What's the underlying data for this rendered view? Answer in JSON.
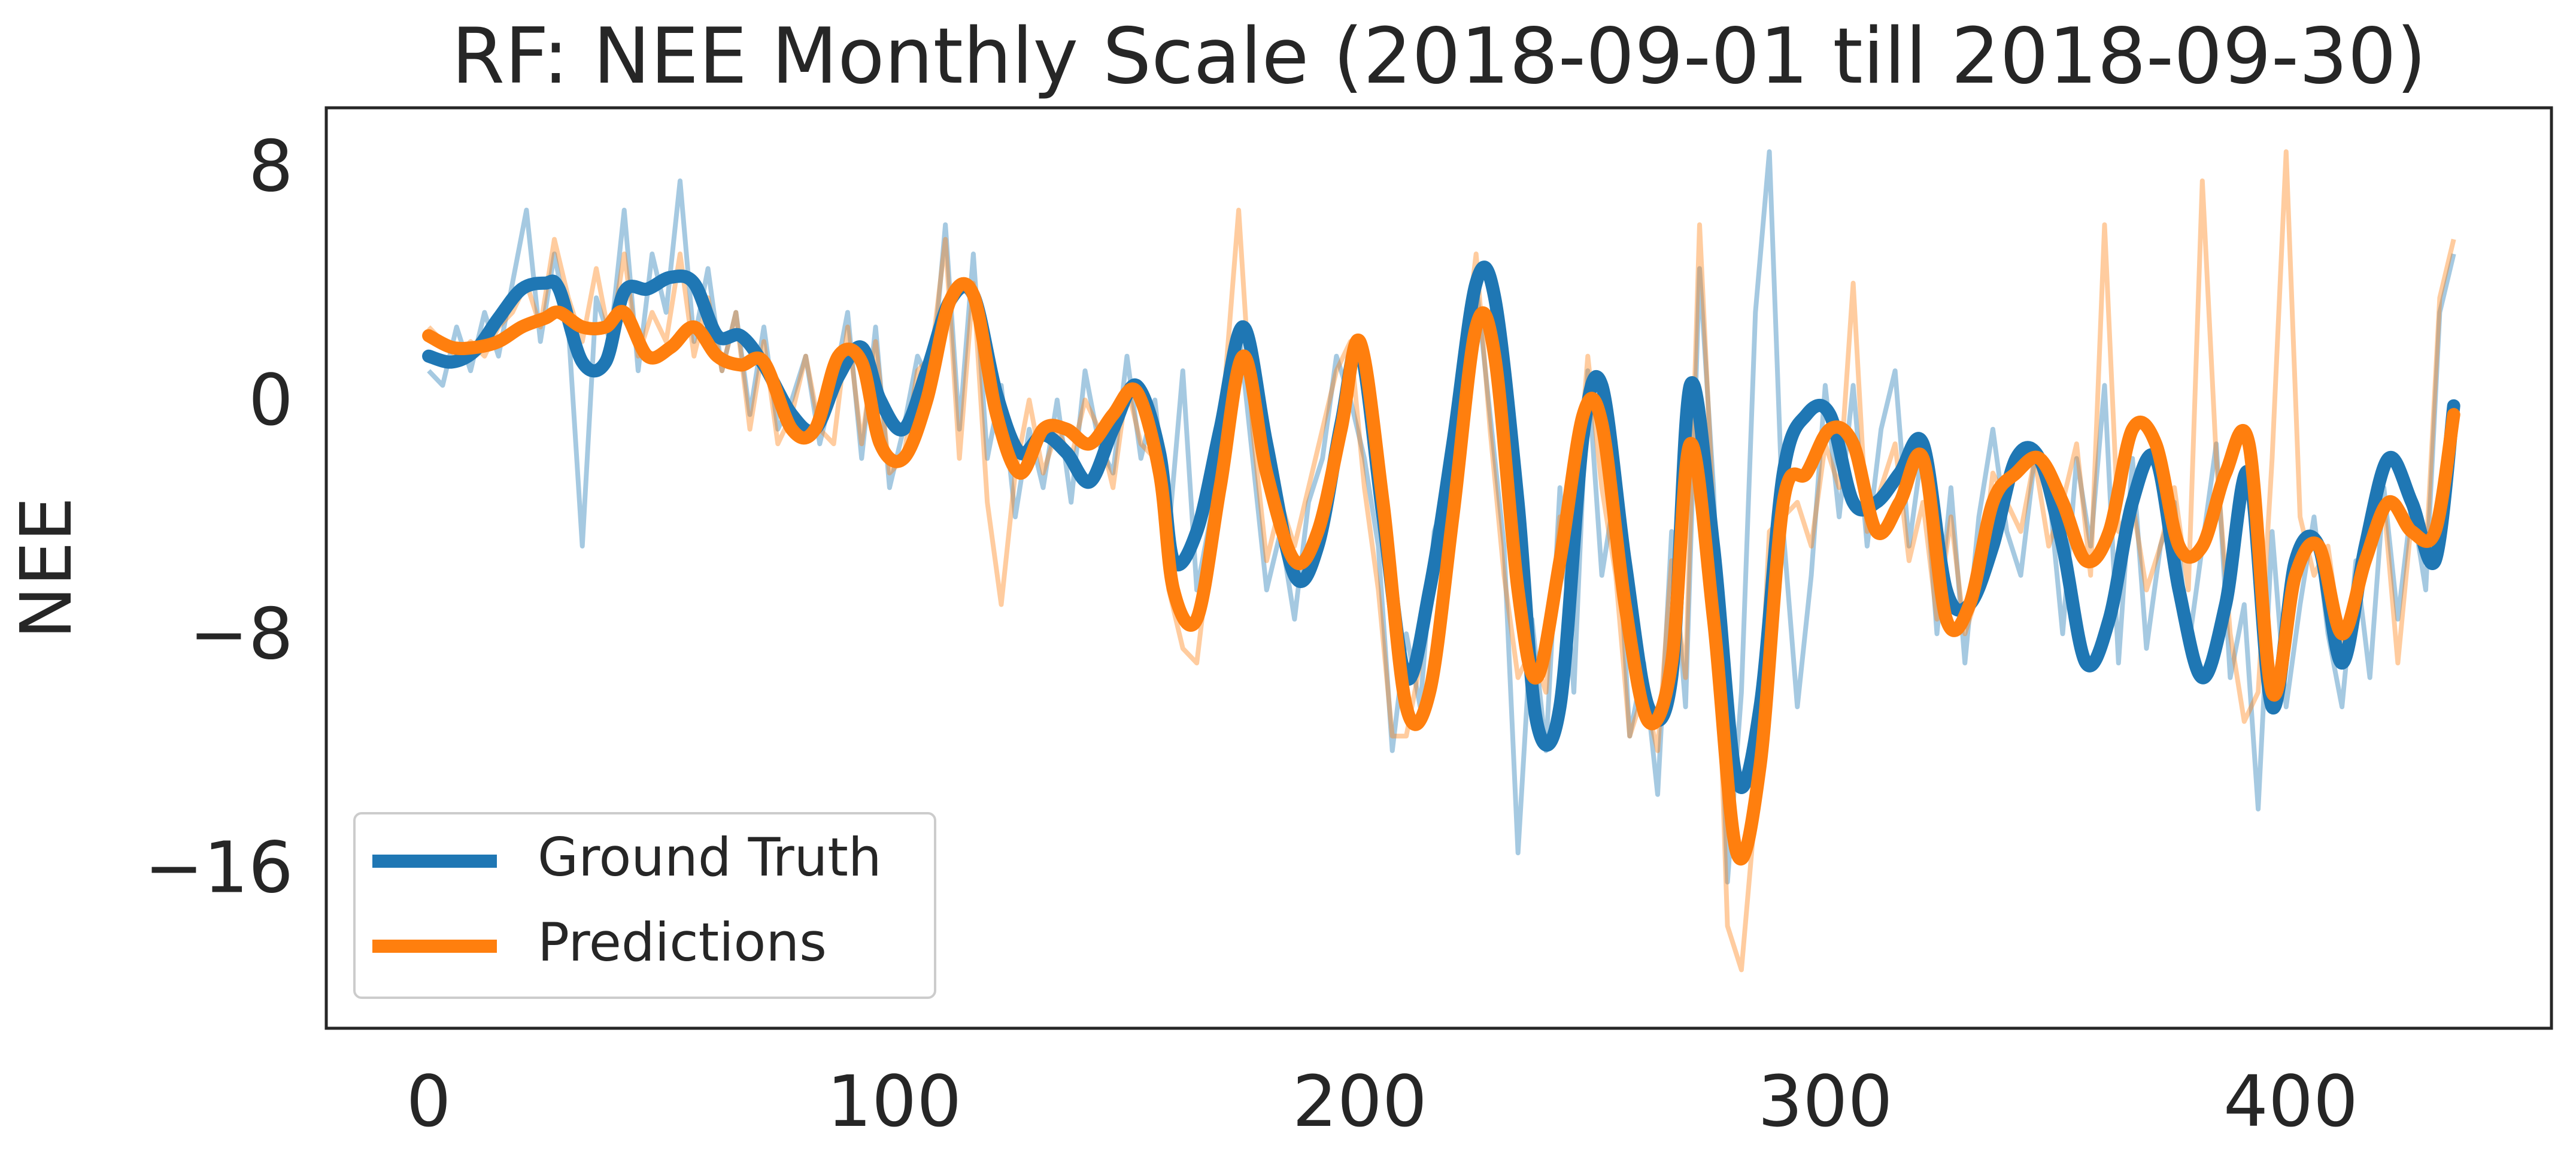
{
  "colors": {
    "ground_truth": "#1f77b4",
    "predictions": "#ff7f0e",
    "axes": "#262626",
    "background": "#ffffff"
  },
  "chart_data": {
    "type": "line",
    "title": "RF: NEE Monthly Scale (2018-09-01 till 2018-09-30)",
    "xlabel": "",
    "ylabel": "NEE",
    "xlim": [
      -22,
      456
    ],
    "ylim": [
      -21.5,
      10
    ],
    "xticks": [
      0,
      100,
      200,
      300,
      400
    ],
    "xtick_labels": [
      "0",
      "100",
      "200",
      "300",
      "400"
    ],
    "yticks": [
      8,
      0,
      -8,
      -16
    ],
    "ytick_labels": [
      "8",
      "0",
      "−8",
      "−16"
    ],
    "grid": false,
    "legend": {
      "placement": "lower-left",
      "entries": [
        "Ground Truth",
        "Predictions"
      ]
    },
    "series": [
      {
        "name": "Ground Truth",
        "color": "#1f77b4",
        "style": "smoothed",
        "x": [
          0,
          5,
          10,
          15,
          20,
          25,
          28,
          33,
          38,
          42,
          47,
          52,
          57,
          62,
          67,
          72,
          78,
          83,
          88,
          93,
          97,
          102,
          107,
          112,
          117,
          122,
          127,
          132,
          137,
          142,
          147,
          152,
          157,
          160,
          165,
          170,
          175,
          180,
          186,
          191,
          196,
          200,
          205,
          210,
          215,
          220,
          225,
          229,
          234,
          238,
          243,
          248,
          252,
          257,
          262,
          267,
          271,
          276,
          281,
          286,
          291,
          296,
          301,
          306,
          311,
          316,
          321,
          326,
          331,
          336,
          341,
          346,
          351,
          356,
          361,
          366,
          371,
          376,
          381,
          386,
          391,
          396,
          401,
          406,
          411,
          416,
          421,
          426,
          431,
          435
        ],
        "y": [
          1.5,
          1.3,
          1.7,
          2.8,
          3.8,
          4.0,
          3.8,
          1.3,
          1.3,
          3.7,
          3.8,
          4.2,
          4.0,
          2.2,
          2.2,
          1.2,
          -0.5,
          -1.0,
          0.8,
          1.8,
          0.0,
          -1.0,
          1.0,
          3.4,
          3.6,
          0.2,
          -1.8,
          -1.2,
          -1.8,
          -2.8,
          -1.0,
          0.5,
          -1.8,
          -5.5,
          -4.5,
          -1.0,
          2.5,
          -1.5,
          -6.0,
          -5.0,
          -0.8,
          1.8,
          -4.0,
          -9.5,
          -6.5,
          -1.5,
          4.0,
          3.5,
          -3.5,
          -11.0,
          -10.5,
          -1.2,
          0.5,
          -5.5,
          -10.5,
          -9.5,
          0.5,
          -5.0,
          -13.0,
          -10.5,
          -2.5,
          -0.5,
          -0.5,
          -3.5,
          -3.5,
          -2.5,
          -1.5,
          -6.5,
          -7.0,
          -5.0,
          -2.0,
          -2.0,
          -5.0,
          -9.0,
          -7.5,
          -3.5,
          -2.0,
          -6.5,
          -9.5,
          -7.0,
          -2.5,
          -10.5,
          -5.5,
          -5.0,
          -9.0,
          -5.0,
          -2.0,
          -3.5,
          -5.5,
          -0.2
        ]
      },
      {
        "name": "Predictions",
        "color": "#ff7f0e",
        "style": "smoothed",
        "x": [
          0,
          5,
          10,
          15,
          20,
          25,
          28,
          33,
          38,
          42,
          47,
          52,
          57,
          62,
          67,
          72,
          78,
          83,
          88,
          93,
          97,
          102,
          107,
          112,
          117,
          122,
          127,
          132,
          137,
          142,
          147,
          152,
          157,
          160,
          165,
          170,
          175,
          180,
          186,
          191,
          196,
          200,
          205,
          210,
          215,
          220,
          225,
          229,
          234,
          238,
          243,
          248,
          252,
          257,
          262,
          267,
          271,
          276,
          281,
          286,
          291,
          296,
          301,
          306,
          311,
          316,
          321,
          326,
          331,
          336,
          341,
          346,
          351,
          356,
          361,
          366,
          371,
          376,
          381,
          386,
          391,
          396,
          401,
          406,
          411,
          416,
          421,
          426,
          431,
          435
        ],
        "y": [
          2.2,
          1.8,
          1.8,
          2.0,
          2.5,
          2.8,
          3.0,
          2.5,
          2.5,
          3.0,
          1.5,
          1.8,
          2.5,
          1.5,
          1.2,
          1.3,
          -1.0,
          -1.0,
          1.5,
          1.3,
          -1.5,
          -2.0,
          0.0,
          3.4,
          3.6,
          -0.5,
          -2.5,
          -1.0,
          -1.0,
          -1.5,
          -0.5,
          0.3,
          -2.5,
          -6.5,
          -7.5,
          -3.0,
          1.5,
          -2.5,
          -5.5,
          -4.5,
          -1.0,
          2.0,
          -3.5,
          -10.5,
          -10.0,
          -4.0,
          2.5,
          1.5,
          -6.5,
          -9.5,
          -5.5,
          -0.5,
          -0.8,
          -7.0,
          -11.0,
          -9.0,
          -1.5,
          -7.5,
          -15.5,
          -12.5,
          -3.5,
          -2.5,
          -1.0,
          -1.5,
          -4.5,
          -3.5,
          -2.0,
          -7.5,
          -7.0,
          -3.5,
          -2.5,
          -2.0,
          -3.5,
          -5.5,
          -4.5,
          -1.0,
          -1.5,
          -5.0,
          -5.0,
          -2.5,
          -1.5,
          -10.0,
          -6.0,
          -5.0,
          -8.0,
          -5.5,
          -3.5,
          -4.5,
          -4.5,
          -0.5
        ]
      },
      {
        "name": "",
        "color": "#1f77b4",
        "style": "raw",
        "x": [
          0,
          3,
          6,
          9,
          12,
          15,
          18,
          21,
          24,
          27,
          30,
          33,
          36,
          39,
          42,
          45,
          48,
          51,
          54,
          57,
          60,
          63,
          66,
          69,
          72,
          75,
          78,
          81,
          84,
          87,
          90,
          93,
          96,
          99,
          102,
          105,
          108,
          111,
          114,
          117,
          120,
          123,
          126,
          129,
          132,
          135,
          138,
          141,
          144,
          147,
          150,
          153,
          156,
          159,
          162,
          165,
          168,
          171,
          174,
          177,
          180,
          183,
          186,
          189,
          192,
          195,
          198,
          201,
          204,
          207,
          210,
          213,
          216,
          219,
          222,
          225,
          228,
          231,
          234,
          237,
          240,
          243,
          246,
          249,
          252,
          255,
          258,
          261,
          264,
          267,
          270,
          273,
          276,
          279,
          282,
          285,
          288,
          291,
          294,
          297,
          300,
          303,
          306,
          309,
          312,
          315,
          318,
          321,
          324,
          327,
          330,
          333,
          336,
          339,
          342,
          345,
          348,
          351,
          354,
          357,
          360,
          363,
          366,
          369,
          372,
          375,
          378,
          381,
          384,
          387,
          390,
          393,
          396,
          399,
          402,
          405,
          408,
          411,
          414,
          417,
          420,
          423,
          426,
          429,
          432,
          435
        ],
        "y": [
          1.0,
          0.5,
          2.5,
          1.0,
          3.0,
          1.5,
          4.0,
          6.5,
          2.0,
          5.0,
          2.5,
          -5.0,
          3.5,
          2.0,
          6.5,
          1.0,
          5.0,
          3.0,
          7.5,
          2.0,
          4.5,
          1.0,
          3.0,
          -0.5,
          2.5,
          -1.0,
          0.0,
          1.5,
          -1.5,
          0.5,
          3.0,
          -2.0,
          2.5,
          -3.0,
          -1.0,
          1.5,
          0.5,
          6.0,
          -1.0,
          5.0,
          -2.0,
          0.5,
          -4.0,
          -1.0,
          -3.0,
          0.0,
          -3.5,
          1.0,
          -1.5,
          -2.5,
          1.5,
          -2.0,
          0.0,
          -4.5,
          1.0,
          -6.5,
          -4.0,
          0.0,
          2.5,
          -2.0,
          -6.5,
          -4.5,
          -7.5,
          -3.5,
          -2.0,
          1.5,
          0.0,
          -2.0,
          -5.0,
          -12.0,
          -8.0,
          -10.5,
          -4.5,
          -3.0,
          0.5,
          4.0,
          -0.5,
          -5.0,
          -15.5,
          -7.5,
          -12.0,
          -3.0,
          -10.0,
          1.0,
          -6.0,
          -3.0,
          -11.5,
          -9.0,
          -13.5,
          -4.5,
          -10.5,
          4.5,
          -3.0,
          -16.5,
          -10.0,
          3.0,
          8.5,
          -4.5,
          -10.5,
          -6.0,
          0.5,
          -4.0,
          0.5,
          -5.0,
          -1.0,
          1.0,
          -5.0,
          -1.5,
          -8.0,
          -3.0,
          -9.0,
          -4.0,
          -1.0,
          -4.5,
          -6.0,
          -2.0,
          -3.0,
          -8.0,
          -2.0,
          -5.0,
          0.5,
          -9.0,
          -2.0,
          -8.5,
          -5.0,
          -3.5,
          -8.5,
          -5.0,
          -1.5,
          -9.5,
          -7.0,
          -14.0,
          -4.5,
          -10.5,
          -7.0,
          -4.0,
          -8.0,
          -10.5,
          -5.5,
          -9.5,
          -3.0,
          -7.5,
          -3.5,
          -6.5,
          3.0,
          5.0
        ]
      },
      {
        "name": "",
        "color": "#ff7f0e",
        "style": "raw",
        "x": [
          0,
          3,
          6,
          9,
          12,
          15,
          18,
          21,
          24,
          27,
          30,
          33,
          36,
          39,
          42,
          45,
          48,
          51,
          54,
          57,
          60,
          63,
          66,
          69,
          72,
          75,
          78,
          81,
          84,
          87,
          90,
          93,
          96,
          99,
          102,
          105,
          108,
          111,
          114,
          117,
          120,
          123,
          126,
          129,
          132,
          135,
          138,
          141,
          144,
          147,
          150,
          153,
          156,
          159,
          162,
          165,
          168,
          171,
          174,
          177,
          180,
          183,
          186,
          189,
          192,
          195,
          198,
          201,
          204,
          207,
          210,
          213,
          216,
          219,
          222,
          225,
          228,
          231,
          234,
          237,
          240,
          243,
          246,
          249,
          252,
          255,
          258,
          261,
          264,
          267,
          270,
          273,
          276,
          279,
          282,
          285,
          288,
          291,
          294,
          297,
          300,
          303,
          306,
          309,
          312,
          315,
          318,
          321,
          324,
          327,
          330,
          333,
          336,
          339,
          342,
          345,
          348,
          351,
          354,
          357,
          360,
          363,
          366,
          369,
          372,
          375,
          378,
          381,
          384,
          387,
          390,
          393,
          396,
          399,
          402,
          405,
          408,
          411,
          414,
          417,
          420,
          423,
          426,
          429,
          432,
          435
        ],
        "y": [
          2.5,
          2.0,
          1.5,
          2.0,
          1.5,
          2.5,
          3.0,
          4.0,
          2.5,
          5.5,
          3.5,
          2.0,
          4.5,
          2.0,
          5.0,
          1.5,
          3.0,
          2.0,
          5.0,
          1.5,
          3.5,
          1.0,
          3.0,
          -1.0,
          2.0,
          -1.5,
          -0.5,
          1.5,
          -1.0,
          -1.5,
          2.5,
          -1.5,
          2.0,
          -2.5,
          -2.0,
          1.0,
          1.5,
          5.5,
          -2.0,
          4.0,
          -3.5,
          -7.0,
          -2.5,
          0.0,
          -2.5,
          -1.0,
          -2.0,
          0.0,
          -1.0,
          -3.0,
          0.5,
          -1.5,
          -2.0,
          -6.5,
          -8.5,
          -9.0,
          -5.0,
          0.5,
          6.5,
          -1.0,
          -5.5,
          -3.5,
          -5.0,
          -3.0,
          -1.0,
          1.0,
          2.0,
          -3.0,
          -6.5,
          -11.5,
          -11.5,
          -9.0,
          -5.5,
          -3.0,
          1.0,
          5.0,
          -1.0,
          -6.0,
          -9.5,
          -8.5,
          -10.0,
          -4.0,
          -4.5,
          1.5,
          -3.0,
          -6.0,
          -11.5,
          -10.0,
          -12.0,
          -5.5,
          -9.5,
          6.0,
          -4.0,
          -18.0,
          -19.5,
          -14.0,
          -4.5,
          -4.0,
          -3.5,
          -5.0,
          -1.5,
          -3.0,
          4.0,
          -4.5,
          -3.0,
          -1.5,
          -5.5,
          -3.5,
          -7.5,
          -4.0,
          -8.0,
          -6.5,
          -2.5,
          -3.5,
          -4.5,
          -2.0,
          -5.0,
          -3.5,
          -1.5,
          -6.0,
          6.0,
          -4.5,
          -3.5,
          -6.5,
          -5.0,
          -3.0,
          -6.5,
          7.5,
          -2.0,
          -8.0,
          -11.0,
          -10.0,
          -2.0,
          8.5,
          -4.0,
          -6.0,
          -5.0,
          -8.5,
          -6.5,
          -4.5,
          -3.5,
          -9.0,
          -4.0,
          -5.5,
          3.5,
          5.5
        ]
      }
    ]
  }
}
